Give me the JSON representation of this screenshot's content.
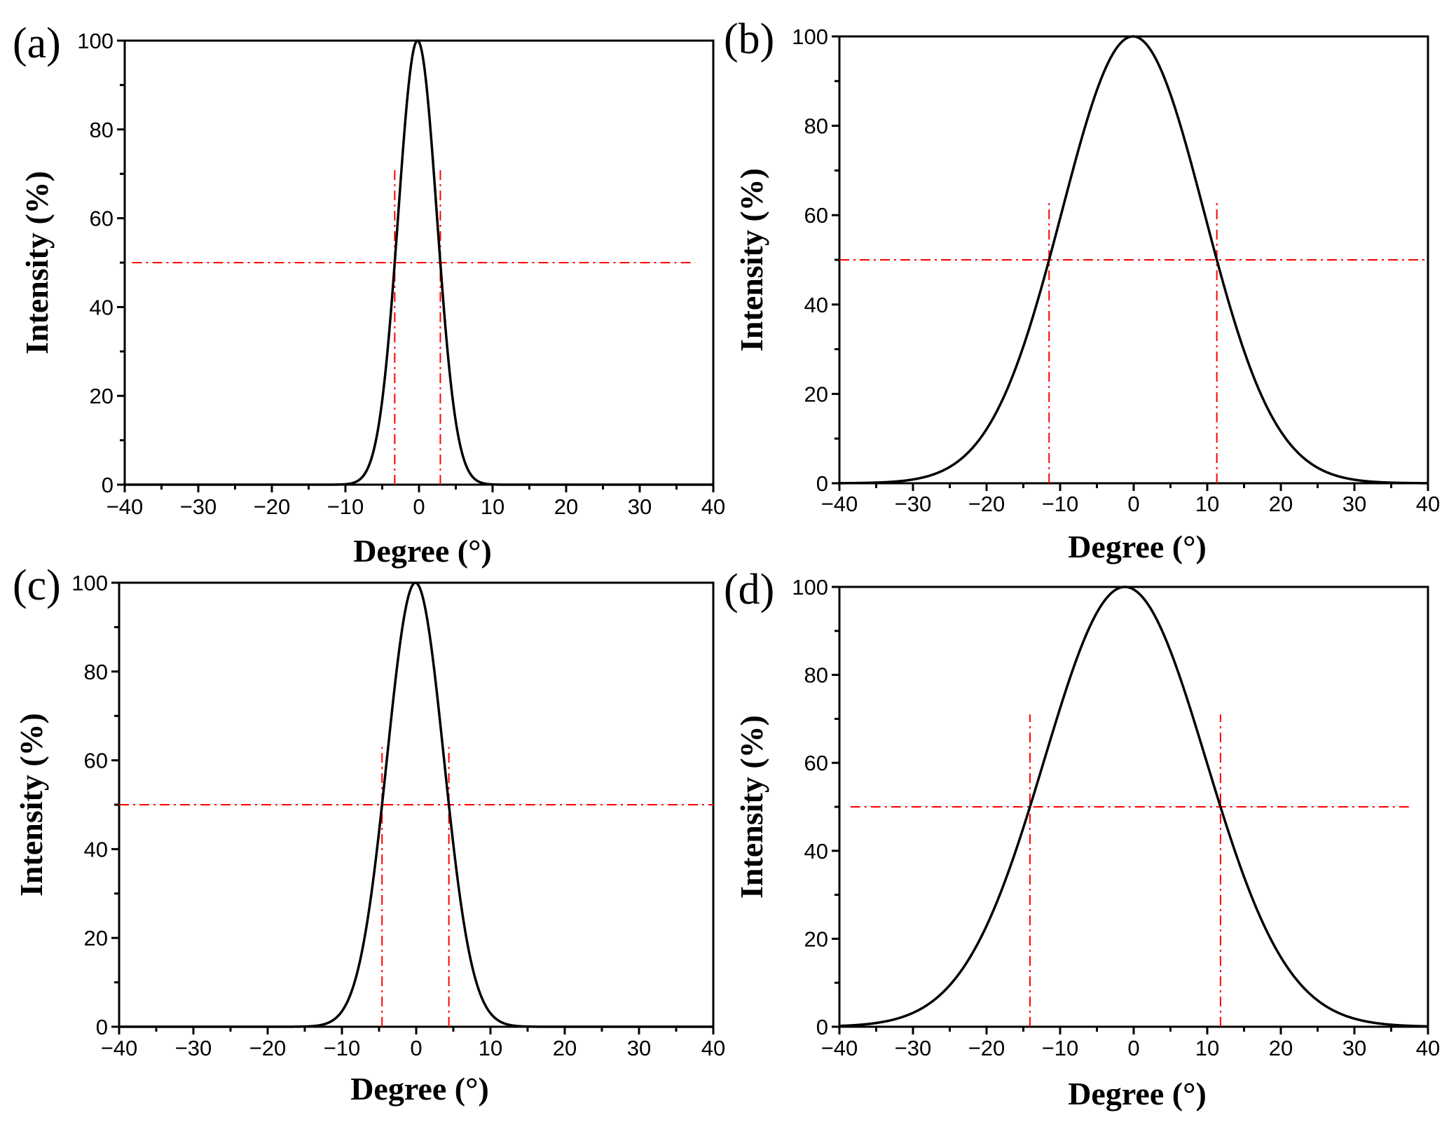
{
  "chart_data": [
    {
      "type": "line",
      "panel_label": "(a)",
      "xlabel": "Degree (°)",
      "ylabel": "Intensity (%)",
      "xlim": [
        -40,
        40
      ],
      "ylim": [
        0,
        100
      ],
      "xticks": [
        -40,
        -30,
        -20,
        -10,
        0,
        10,
        20,
        30,
        40
      ],
      "yticks": [
        0,
        20,
        40,
        60,
        80,
        100
      ],
      "xtick_labels": [
        "−40",
        "−30",
        "−20",
        "−10",
        "0",
        "10",
        "20",
        "30",
        "40"
      ],
      "ytick_labels": [
        "0",
        "20",
        "40",
        "60",
        "80",
        "100"
      ],
      "series": [
        {
          "name": "intensity",
          "peak_center": -0.2,
          "half_max_left": -3.3,
          "half_max_right": 2.9,
          "peak_value": 100
        }
      ],
      "hline": {
        "y": 50,
        "x_range": [
          -39,
          37.5
        ]
      },
      "vlines": [
        {
          "x": -3.3,
          "y_range": [
            0,
            71
          ]
        },
        {
          "x": 2.9,
          "y_range": [
            0,
            71
          ]
        }
      ]
    },
    {
      "type": "line",
      "panel_label": "(b)",
      "xlabel": "Degree (°)",
      "ylabel": "Intensity (%)",
      "xlim": [
        -40,
        40
      ],
      "ylim": [
        0,
        100
      ],
      "xticks": [
        -40,
        -30,
        -20,
        -10,
        0,
        10,
        20,
        30,
        40
      ],
      "yticks": [
        0,
        20,
        40,
        60,
        80,
        100
      ],
      "xtick_labels": [
        "−40",
        "−30",
        "−20",
        "−10",
        "0",
        "10",
        "20",
        "30",
        "40"
      ],
      "ytick_labels": [
        "0",
        "20",
        "40",
        "60",
        "80",
        "100"
      ],
      "series": [
        {
          "name": "intensity",
          "peak_center": -0.1,
          "half_max_left": -11.5,
          "half_max_right": 11.3,
          "peak_value": 100
        }
      ],
      "hline": {
        "y": 50,
        "x_range": [
          -40,
          40
        ]
      },
      "vlines": [
        {
          "x": -11.5,
          "y_range": [
            0,
            63
          ]
        },
        {
          "x": 11.3,
          "y_range": [
            0,
            63
          ]
        }
      ]
    },
    {
      "type": "line",
      "panel_label": "(c)",
      "xlabel": "Degree (°)",
      "ylabel": "Intensity (%)",
      "xlim": [
        -40,
        40
      ],
      "ylim": [
        0,
        100
      ],
      "xticks": [
        -40,
        -30,
        -20,
        -10,
        0,
        10,
        20,
        30,
        40
      ],
      "yticks": [
        0,
        20,
        40,
        60,
        80,
        100
      ],
      "xtick_labels": [
        "−40",
        "−30",
        "−20",
        "−10",
        "0",
        "10",
        "20",
        "30",
        "40"
      ],
      "ytick_labels": [
        "0",
        "20",
        "40",
        "60",
        "80",
        "100"
      ],
      "series": [
        {
          "name": "intensity",
          "peak_center": -0.1,
          "half_max_left": -4.6,
          "half_max_right": 4.4,
          "peak_value": 100
        }
      ],
      "hline": {
        "y": 50,
        "x_range": [
          -40,
          40
        ]
      },
      "vlines": [
        {
          "x": -4.6,
          "y_range": [
            0,
            63
          ]
        },
        {
          "x": 4.4,
          "y_range": [
            0,
            63
          ]
        }
      ]
    },
    {
      "type": "line",
      "panel_label": "(d)",
      "xlabel": "Degree (°)",
      "ylabel": "Intensity (%)",
      "xlim": [
        -40,
        40
      ],
      "ylim": [
        0,
        100
      ],
      "xticks": [
        -40,
        -30,
        -20,
        -10,
        0,
        10,
        20,
        30,
        40
      ],
      "yticks": [
        0,
        20,
        40,
        60,
        80,
        100
      ],
      "xtick_labels": [
        "−40",
        "−30",
        "−20",
        "−10",
        "0",
        "10",
        "20",
        "30",
        "40"
      ],
      "ytick_labels": [
        "0",
        "20",
        "40",
        "60",
        "80",
        "100"
      ],
      "series": [
        {
          "name": "intensity",
          "peak_center": -1.2,
          "half_max_left": -14.1,
          "half_max_right": 11.8,
          "peak_value": 100
        }
      ],
      "hline": {
        "y": 50,
        "x_range": [
          -38.5,
          37.5
        ]
      },
      "vlines": [
        {
          "x": -14.1,
          "y_range": [
            0,
            71
          ]
        },
        {
          "x": 11.8,
          "y_range": [
            0,
            71
          ]
        }
      ]
    }
  ]
}
